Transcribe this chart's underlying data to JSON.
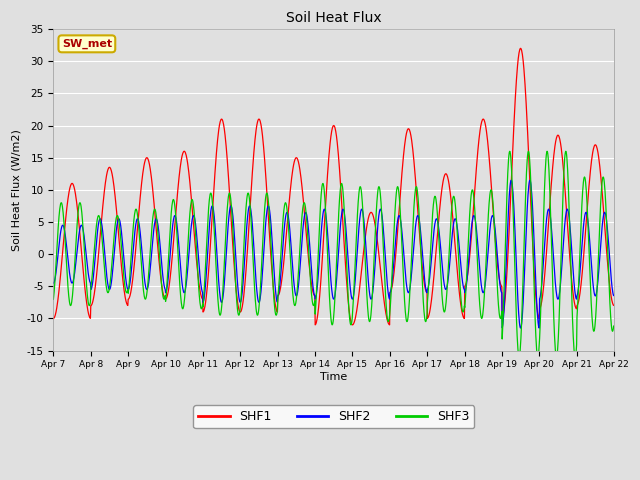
{
  "title": "Soil Heat Flux",
  "xlabel": "Time",
  "ylabel": "Soil Heat Flux (W/m2)",
  "ylim": [
    -15,
    35
  ],
  "fig_bg_color": "#e0e0e0",
  "plot_bg_color": "#e0e0e0",
  "grid_color": "#ffffff",
  "annotation_text": "SW_met",
  "annotation_bg": "#ffffcc",
  "annotation_edge": "#ccaa00",
  "annotation_text_color": "#aa0000",
  "line_colors": {
    "SHF1": "#ff0000",
    "SHF2": "#0000ff",
    "SHF3": "#00cc00"
  },
  "xtick_labels": [
    "Apr 7",
    "Apr 8",
    "Apr 9",
    "Apr 10",
    "Apr 11",
    "Apr 12",
    "Apr 13",
    "Apr 14",
    "Apr 15",
    "Apr 16",
    "Apr 17",
    "Apr 18",
    "Apr 19",
    "Apr 20",
    "Apr 21",
    "Apr 22"
  ],
  "ytick_values": [
    -15,
    -10,
    -5,
    0,
    5,
    10,
    15,
    20,
    25,
    30,
    35
  ],
  "n_points": 1500,
  "total_days": 15,
  "shf1_amplitudes": [
    11,
    13.5,
    15,
    16,
    21,
    21,
    15,
    20,
    6.5,
    19.5,
    12.5,
    21,
    32,
    18.5,
    17
  ],
  "shf1_mins": [
    -10,
    -8,
    -7,
    -7,
    -9,
    -9,
    -6.5,
    -11,
    -11,
    -6,
    -10,
    -5,
    -10,
    -8.5,
    -8
  ],
  "shf2_amplitudes": [
    4.5,
    5.5,
    5.5,
    6,
    7.5,
    7.5,
    6.5,
    7,
    7,
    6,
    5.5,
    6,
    11.5,
    7,
    6.5
  ],
  "shf3_amplitudes": [
    8,
    6,
    7,
    8.5,
    9.5,
    9.5,
    8,
    11,
    10.5,
    10.5,
    9,
    10,
    16,
    16,
    12
  ],
  "shf2_freq": 2.0,
  "shf3_freq": 2.0
}
